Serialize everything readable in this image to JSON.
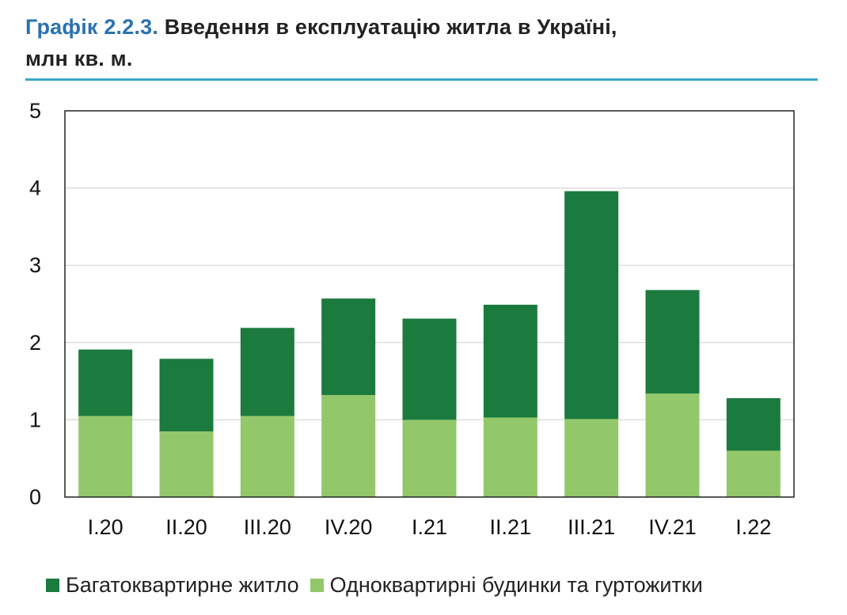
{
  "header": {
    "title_prefix": "Графік 2.2.3.",
    "title_main": "Введення в експлуатацію житла в Україні,",
    "title_unit": "млн кв. м."
  },
  "chart_data": {
    "type": "bar",
    "stacked": true,
    "categories": [
      "I.20",
      "II.20",
      "III.20",
      "IV.20",
      "I.21",
      "II.21",
      "III.21",
      "IV.21",
      "I.22"
    ],
    "series": [
      {
        "name": "Одноквартирні будинки та гуртожитки",
        "color": "#92c86a",
        "values": [
          1.05,
          0.85,
          1.05,
          1.32,
          1.0,
          1.03,
          1.01,
          1.34,
          0.6
        ]
      },
      {
        "name": "Багатоквартирне житло",
        "color": "#1b7a3e",
        "values": [
          0.86,
          0.94,
          1.14,
          1.25,
          1.31,
          1.46,
          2.95,
          1.34,
          0.68
        ]
      }
    ],
    "ylim": [
      0,
      5
    ],
    "yticks": [
      "0",
      "1",
      "2",
      "3",
      "4",
      "5"
    ],
    "grid": true,
    "legend": [
      "Багатоквартирне житло",
      "Одноквартирні будинки та гуртожитки"
    ],
    "legend_position": "bottom"
  }
}
